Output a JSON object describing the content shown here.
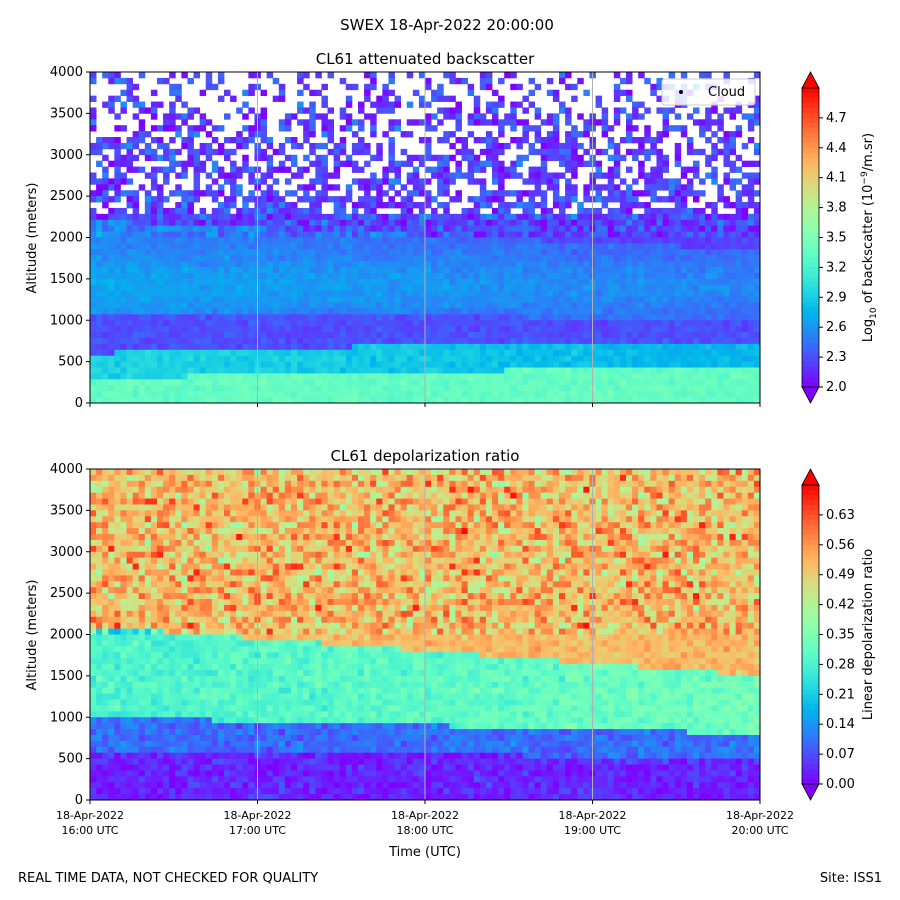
{
  "figure": {
    "suptitle": "SWEX 18-Apr-2022 20:00:00",
    "footer_left": "REAL TIME DATA, NOT CHECKED FOR QUALITY",
    "footer_right": "Site: ISS1",
    "xlabel": "Time (UTC)"
  },
  "chart_data": [
    {
      "type": "heatmap",
      "title": "CL61 attenuated backscatter",
      "ylabel": "Altitude (meters)",
      "ylim": [
        0,
        4000
      ],
      "yticks": [
        0,
        500,
        1000,
        1500,
        2000,
        2500,
        3000,
        3500,
        4000
      ],
      "xticks": [
        {
          "l1": "18-Apr-2022",
          "l2": "16:00 UTC"
        },
        {
          "l1": "18-Apr-2022",
          "l2": "17:00 UTC"
        },
        {
          "l1": "18-Apr-2022",
          "l2": "18:00 UTC"
        },
        {
          "l1": "18-Apr-2022",
          "l2": "19:00 UTC"
        },
        {
          "l1": "18-Apr-2022",
          "l2": "20:00 UTC"
        }
      ],
      "xticklabels_visible": false,
      "xrange_hours": [
        16,
        20
      ],
      "colormap": "rainbow",
      "colorbar": {
        "label_prefix": "Log",
        "label_sub": "10",
        "label_mid": " of backscatter (10",
        "label_sup": "−9",
        "label_suffix": "/m.sr)",
        "range": [
          2.0,
          5.0
        ],
        "ticks": [
          "2.0",
          "2.3",
          "2.6",
          "2.9",
          "3.2",
          "3.5",
          "3.8",
          "4.1",
          "4.4",
          "4.7"
        ]
      },
      "legend": {
        "label": "Cloud",
        "position": "top-right"
      },
      "profile_description": [
        {
          "altitude": "0-300",
          "value": 3.3
        },
        {
          "altitude": "300-650",
          "value": 2.9
        },
        {
          "altitude": "650-1100",
          "value": 2.3
        },
        {
          "altitude": "1100-2200",
          "value": 2.6
        },
        {
          "altitude": "2200-4000",
          "value": 2.2
        }
      ]
    },
    {
      "type": "heatmap",
      "title": "CL61 depolarization ratio",
      "ylabel": "Altitude (meters)",
      "ylim": [
        0,
        4000
      ],
      "yticks": [
        0,
        500,
        1000,
        1500,
        2000,
        2500,
        3000,
        3500,
        4000
      ],
      "xticks": [
        {
          "l1": "18-Apr-2022",
          "l2": "16:00 UTC"
        },
        {
          "l1": "18-Apr-2022",
          "l2": "17:00 UTC"
        },
        {
          "l1": "18-Apr-2022",
          "l2": "18:00 UTC"
        },
        {
          "l1": "18-Apr-2022",
          "l2": "19:00 UTC"
        },
        {
          "l1": "18-Apr-2022",
          "l2": "20:00 UTC"
        }
      ],
      "xticklabels_visible": true,
      "xrange_hours": [
        16,
        20
      ],
      "colormap": "rainbow",
      "colorbar": {
        "label": "Linear depolarization ratio",
        "range": [
          0.0,
          0.7
        ],
        "ticks": [
          "0.00",
          "0.07",
          "0.14",
          "0.21",
          "0.28",
          "0.35",
          "0.42",
          "0.49",
          "0.56",
          "0.63"
        ]
      },
      "profile_description": [
        {
          "altitude": "0-600",
          "value": 0.03
        },
        {
          "altitude": "600-1000",
          "value": 0.12
        },
        {
          "altitude": "1000-2100",
          "value": 0.3
        },
        {
          "altitude": "2100-4000",
          "value": 0.52
        }
      ]
    }
  ]
}
